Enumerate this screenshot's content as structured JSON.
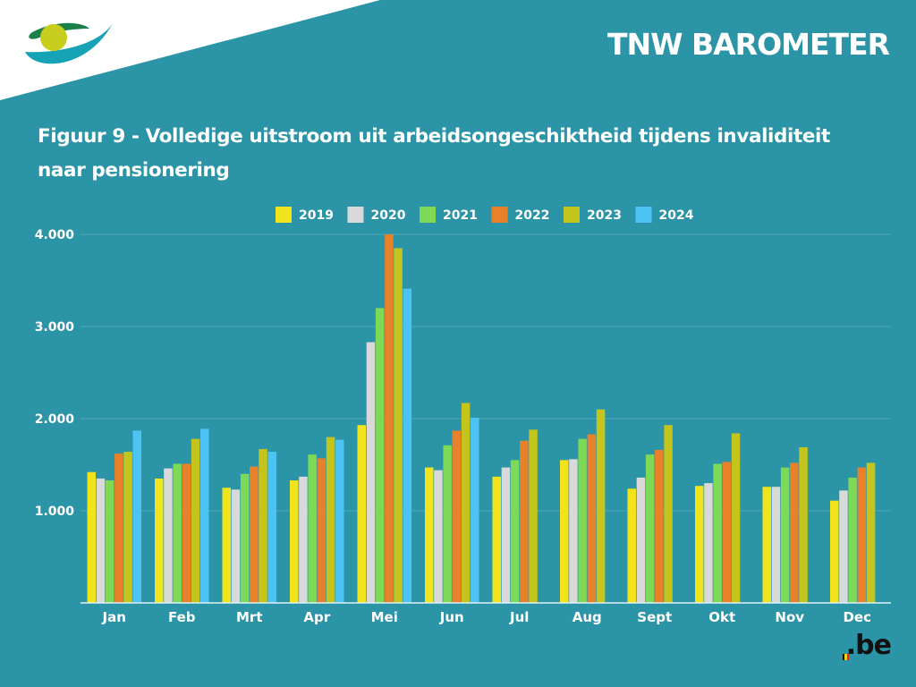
{
  "header": {
    "brand": "TNW BAROMETER",
    "title_line1": "Figuur 9  - Volledige uitstroom uit arbeidsongeschiktheid tijdens invaliditeit",
    "title_line2": "naar pensionering"
  },
  "footer": {
    "logo_text": ".be"
  },
  "colors": {
    "background": "#2B95A7",
    "corner": "#ffffff",
    "gridline": "#4FA8B7",
    "axis": "#dff1f4"
  },
  "chart_data": {
    "type": "bar",
    "title": "Figuur 9  - Volledige uitstroom uit arbeidsongeschiktheid tijdens invaliditeit naar pensionering",
    "xlabel": "",
    "ylabel": "",
    "ylim": [
      0,
      4000
    ],
    "yticks": [
      1000,
      2000,
      3000,
      4000
    ],
    "ytick_labels": [
      "1.000",
      "2.000",
      "3.000",
      "4.000"
    ],
    "grid": true,
    "legend_position": "top",
    "categories": [
      "Jan",
      "Feb",
      "Mrt",
      "Apr",
      "Mei",
      "Jun",
      "Jul",
      "Aug",
      "Sept",
      "Okt",
      "Nov",
      "Dec"
    ],
    "series": [
      {
        "name": "2019",
        "color": "#F2E41C",
        "values": [
          1420,
          1350,
          1250,
          1330,
          1930,
          1470,
          1370,
          1550,
          1240,
          1270,
          1260,
          1110
        ]
      },
      {
        "name": "2020",
        "color": "#D9D9D9",
        "values": [
          1350,
          1460,
          1230,
          1370,
          2830,
          1440,
          1470,
          1560,
          1360,
          1300,
          1260,
          1220
        ]
      },
      {
        "name": "2021",
        "color": "#7ED957",
        "values": [
          1330,
          1510,
          1400,
          1610,
          3200,
          1710,
          1550,
          1780,
          1610,
          1510,
          1470,
          1360
        ]
      },
      {
        "name": "2022",
        "color": "#E8812A",
        "values": [
          1620,
          1510,
          1480,
          1570,
          4000,
          1870,
          1760,
          1830,
          1660,
          1530,
          1520,
          1470
        ]
      },
      {
        "name": "2023",
        "color": "#C3C51D",
        "values": [
          1640,
          1780,
          1670,
          1800,
          3850,
          2170,
          1880,
          2100,
          1930,
          1840,
          1690,
          1520
        ]
      },
      {
        "name": "2024",
        "color": "#4CC3F2",
        "values": [
          1870,
          1890,
          1640,
          1770,
          3410,
          2010,
          null,
          null,
          null,
          null,
          null,
          null
        ]
      }
    ]
  }
}
